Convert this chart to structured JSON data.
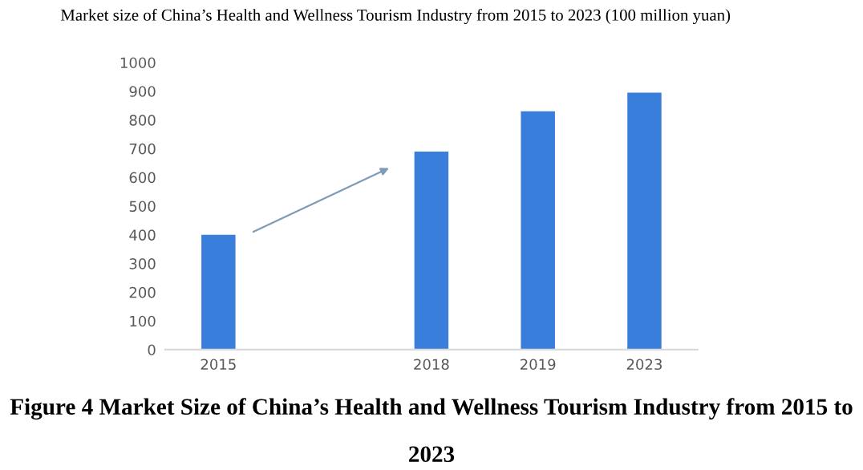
{
  "chart_data": {
    "type": "bar",
    "title": "Market size of China’s Health and Wellness Tourism Industry from 2015 to 2023 (100 million yuan)",
    "categories": [
      "2015",
      null,
      "2018",
      "2019",
      "2023"
    ],
    "values": [
      400,
      null,
      690,
      830,
      895
    ],
    "color": "#3a7edb",
    "ylim": [
      0,
      1000
    ],
    "yticks": [
      0,
      100,
      200,
      300,
      400,
      500,
      600,
      700,
      800,
      900,
      1000
    ],
    "grid": false,
    "legend": false,
    "annotations": [
      "Figure 4 Market Size of China’s Health and Wellness Tourism Industry from 2015 to 2023"
    ]
  }
}
